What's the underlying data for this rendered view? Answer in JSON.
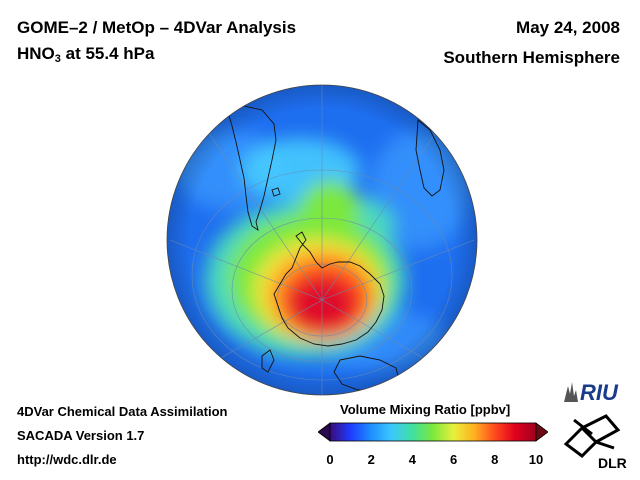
{
  "header": {
    "title": "GOME–2 / MetOp – 4DVar Analysis",
    "species_main": "HNO",
    "species_sub": "3",
    "species_rest": " at 55.4 hPa",
    "date": "May 24, 2008",
    "hemisphere": "Southern Hemisphere"
  },
  "footer": {
    "line1": "4DVar Chemical Data Assimilation",
    "line2": "SACADA Version 1.7",
    "line3": "http://wdc.dlr.de"
  },
  "colorbar": {
    "title": "Volume Mixing Ratio [ppbv]",
    "min": 0,
    "max": 10,
    "ticks": [
      "0",
      "2",
      "4",
      "6",
      "8",
      "10"
    ],
    "colors": [
      "#3a0a7a",
      "#1e3cff",
      "#1e90ff",
      "#3cc8ff",
      "#40e0a0",
      "#7ce83c",
      "#e8f03c",
      "#ffb020",
      "#ff4a1e",
      "#e0001e",
      "#a0001e"
    ]
  },
  "logos": {
    "riu": "RIU",
    "dlr": "DLR"
  },
  "map": {
    "projection": "orthographic south polar",
    "max_value_region": "Antarctica",
    "center_value_ppbv": 9.5
  }
}
